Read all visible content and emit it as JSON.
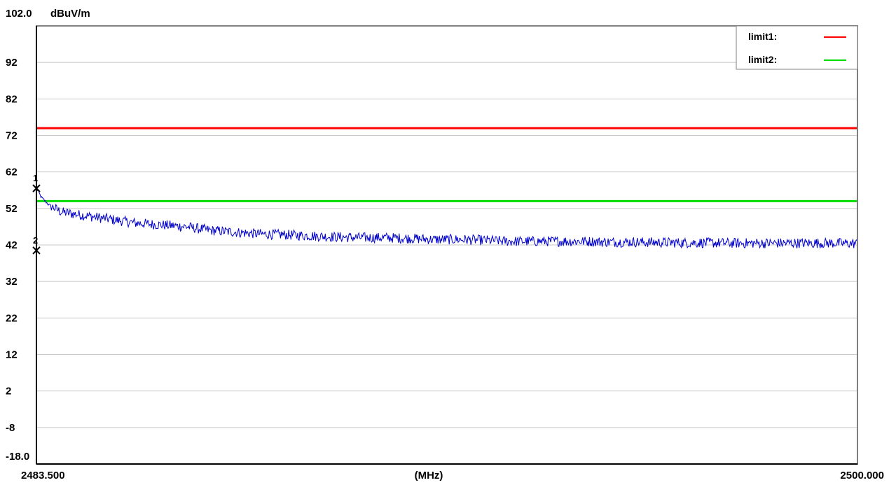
{
  "chart_data": {
    "type": "line",
    "y_unit": "dBuV/m",
    "x_unit": "(MHz)",
    "xlim": [
      2483.5,
      2500.0
    ],
    "ylim": [
      -18.0,
      102.0
    ],
    "x_tick_labels": [
      "2483.500",
      "(MHz)",
      "2500.000"
    ],
    "y_tick_labels": [
      "102.0",
      "92",
      "82",
      "72",
      "62",
      "52",
      "42",
      "32",
      "22",
      "12",
      "2",
      "-8",
      "-18.0"
    ],
    "y_ticks": [
      102,
      92,
      82,
      72,
      62,
      52,
      42,
      32,
      22,
      12,
      2,
      -8,
      -18
    ],
    "grid": true,
    "legend_position": "top-right",
    "limits": [
      {
        "name": "limit1:",
        "value": 74.0,
        "color": "#ff0000"
      },
      {
        "name": "limit2:",
        "value": 54.0,
        "color": "#00dd00"
      }
    ],
    "series": [
      {
        "color": "#0000cc",
        "x": [
          2483.5,
          2483.6,
          2483.75,
          2484.0,
          2484.5,
          2485.0,
          2485.5,
          2486.0,
          2486.5,
          2487.0,
          2487.5,
          2488.0,
          2488.5,
          2489.0,
          2489.5,
          2490.0,
          2490.5,
          2491.0,
          2491.5,
          2492.0,
          2492.5,
          2493.0,
          2493.5,
          2494.0,
          2494.5,
          2495.0,
          2495.5,
          2496.0,
          2496.5,
          2497.0,
          2497.5,
          2498.0,
          2498.5,
          2499.0,
          2499.5,
          2500.0
        ],
        "y": [
          57.5,
          55.0,
          53.0,
          51.0,
          50.0,
          49.0,
          48.0,
          47.5,
          47.0,
          46.0,
          45.5,
          45.0,
          44.8,
          44.5,
          44.2,
          44.0,
          44.0,
          43.8,
          43.5,
          43.5,
          43.3,
          43.0,
          43.0,
          43.0,
          43.0,
          42.8,
          42.8,
          42.7,
          42.6,
          42.6,
          42.5,
          42.5,
          42.5,
          42.5,
          42.5,
          42.4
        ]
      }
    ],
    "markers": [
      {
        "label": "1",
        "x": 2483.5,
        "y": 57.5
      },
      {
        "label": "2",
        "x": 2483.5,
        "y": 40.5
      }
    ]
  }
}
